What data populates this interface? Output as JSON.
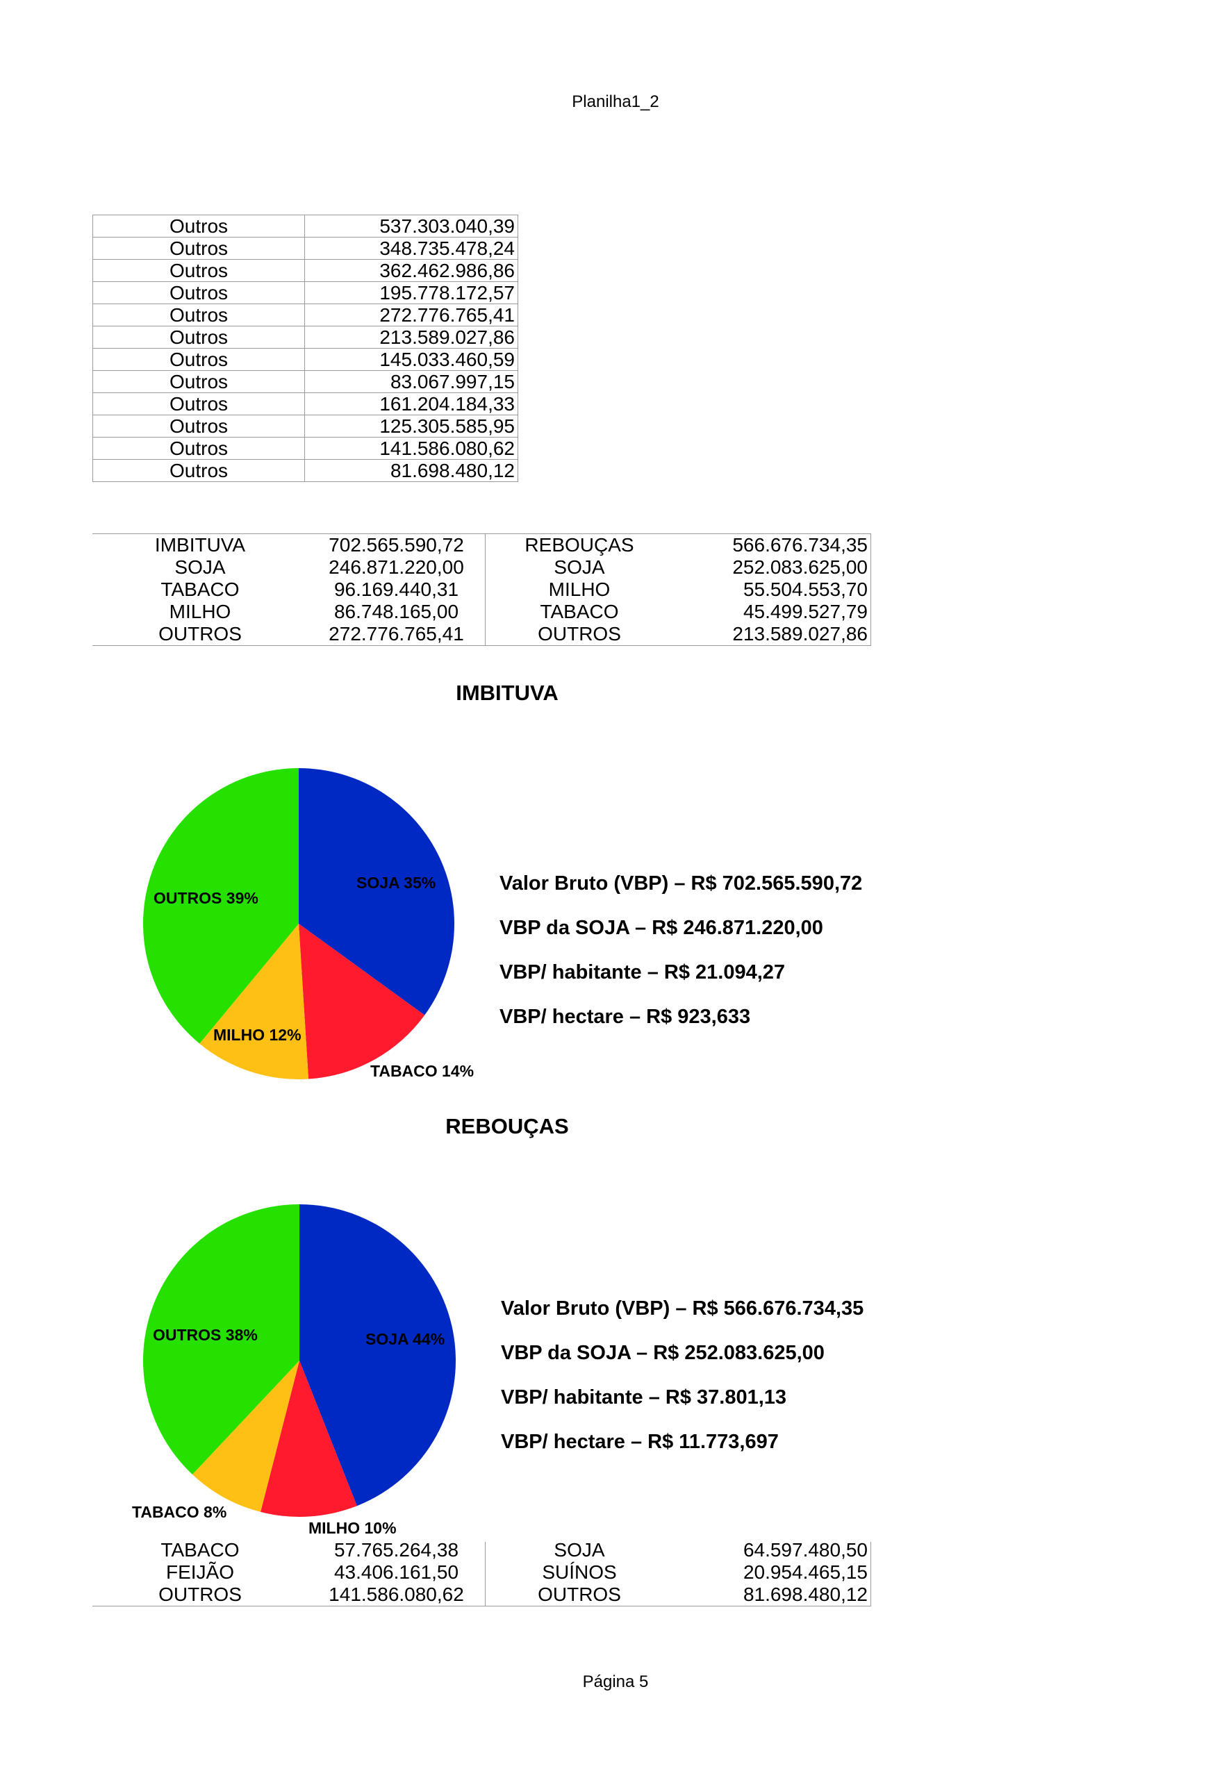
{
  "page": {
    "header": "Planilha1_2",
    "footer": "Página 5"
  },
  "outros_table": [
    {
      "label": "Outros",
      "value": "537.303.040,39"
    },
    {
      "label": "Outros",
      "value": "348.735.478,24"
    },
    {
      "label": "Outros",
      "value": "362.462.986,86"
    },
    {
      "label": "Outros",
      "value": "195.778.172,57"
    },
    {
      "label": "Outros",
      "value": "272.776.765,41"
    },
    {
      "label": "Outros",
      "value": "213.589.027,86"
    },
    {
      "label": "Outros",
      "value": "145.033.460,59"
    },
    {
      "label": "Outros",
      "value": "83.067.997,15"
    },
    {
      "label": "Outros",
      "value": "161.204.184,33"
    },
    {
      "label": "Outros",
      "value": "125.305.585,95"
    },
    {
      "label": "Outros",
      "value": "141.586.080,62"
    },
    {
      "label": "Outros",
      "value": "81.698.480,12"
    }
  ],
  "summary": {
    "rows": [
      [
        "IMBITUVA",
        "702.565.590,72",
        "REBOUÇAS",
        "566.676.734,35"
      ],
      [
        "SOJA",
        "246.871.220,00",
        "SOJA",
        "252.083.625,00"
      ],
      [
        "TABACO",
        "96.169.440,31",
        "MILHO",
        "55.504.553,70"
      ],
      [
        "MILHO",
        "86.748.165,00",
        "TABACO",
        "45.499.527,79"
      ],
      [
        "OUTROS",
        "272.776.765,41",
        "OUTROS",
        "213.589.027,86"
      ]
    ]
  },
  "summary2": {
    "rows": [
      [
        "TABACO",
        "57.765.264,38",
        "SOJA",
        "64.597.480,50"
      ],
      [
        "FEIJÃO",
        "43.406.161,50",
        "SUÍNOS",
        "20.954.465,15"
      ],
      [
        "OUTROS",
        "141.586.080,62",
        "OUTROS",
        "81.698.480,12"
      ]
    ]
  },
  "chart_data": [
    {
      "type": "pie",
      "title": "IMBITUVA",
      "categories": [
        "SOJA",
        "TABACO",
        "MILHO",
        "OUTROS"
      ],
      "values": [
        35,
        14,
        12,
        39
      ],
      "labels": [
        "SOJA 35%",
        "TABACO 14%",
        "MILHO 12%",
        "OUTROS 39%"
      ],
      "colors": [
        "#0029c4",
        "#ff1a2e",
        "#ffc015",
        "#26e000"
      ],
      "info": [
        "Valor Bruto (VBP) – R$ 702.565.590,72",
        "VBP da SOJA – R$ 246.871.220,00",
        "VBP/ habitante – R$ 21.094,27",
        "VBP/ hectare –  R$ 923,633"
      ]
    },
    {
      "type": "pie",
      "title": "REBOUÇAS",
      "categories": [
        "SOJA",
        "MILHO",
        "TABACO",
        "OUTROS"
      ],
      "values": [
        44,
        10,
        8,
        38
      ],
      "labels": [
        "SOJA 44%",
        "MILHO 10%",
        "TABACO 8%",
        "OUTROS 38%"
      ],
      "colors": [
        "#0029c4",
        "#ff1a2e",
        "#ffc015",
        "#26e000"
      ],
      "info": [
        "Valor Bruto (VBP) – R$ 566.676.734,35",
        "VBP da SOJA – R$ 252.083.625,00",
        "VBP/ habitante – R$ 37.801,13",
        "VBP/ hectare –  R$ 11.773,697"
      ]
    }
  ]
}
